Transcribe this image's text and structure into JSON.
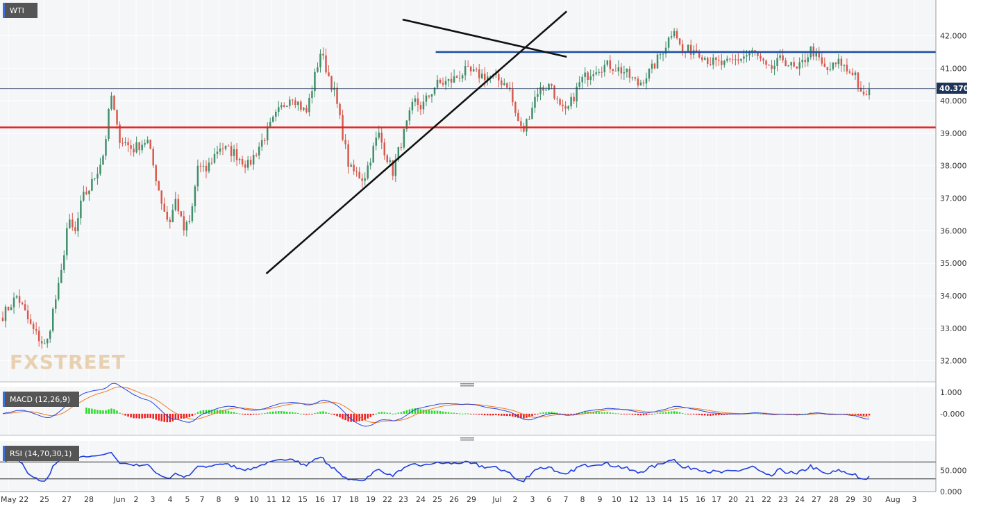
{
  "colors": {
    "up_candle": "#3f8f6a",
    "down_candle": "#d9584c",
    "support_line": "#e32222",
    "resistance_line": "#1e4fa0",
    "trendline": "#111111",
    "macd_line": "#2b44d9",
    "signal_line": "#f07a22",
    "hist_positive": "#22dd22",
    "hist_negative": "#ee1c1c",
    "rsi_line": "#1f3de0",
    "price_tag_bg": "#1d3557",
    "label_bg": "#555555"
  },
  "chart_data": [
    {
      "type": "candlestick",
      "title": "WTI",
      "x_labels": [
        "May 22",
        "25",
        "27",
        "28",
        "Jun",
        "2",
        "3",
        "4",
        "5",
        "7",
        "8",
        "9",
        "10",
        "11",
        "12",
        "15",
        "16",
        "17",
        "18",
        "19",
        "22",
        "23",
        "24",
        "25",
        "26",
        "29",
        "Jul",
        "2",
        "3",
        "6",
        "7",
        "8",
        "9",
        "10",
        "12",
        "13",
        "14",
        "15",
        "16",
        "17",
        "20",
        "21",
        "22",
        "23",
        "24",
        "27",
        "28",
        "29",
        "30",
        "Aug",
        "3"
      ],
      "y_ticks": [
        "32.000",
        "33.000",
        "34.000",
        "35.000",
        "36.000",
        "37.000",
        "38.000",
        "39.000",
        "40.000",
        "41.000",
        "42.000"
      ],
      "ylim": [
        31.35,
        43.1
      ],
      "last_price": "40.370",
      "current_price": 40.37,
      "horizontal_levels": [
        {
          "name": "support",
          "value": 39.18
        },
        {
          "name": "resistance",
          "value": 41.5
        }
      ],
      "trendlines": [
        {
          "name": "rising-support",
          "from": [
            12.7,
            34.68
          ],
          "to": [
            30.05,
            42.75
          ]
        },
        {
          "name": "falling-resistance",
          "from": [
            20.95,
            42.5
          ],
          "to": [
            30.05,
            41.35
          ]
        }
      ],
      "anchors": [
        [
          0,
          33.4
        ],
        [
          1,
          34.0
        ],
        [
          2,
          33.0
        ],
        [
          3,
          32.4
        ],
        [
          3.5,
          33.6
        ],
        [
          4,
          34.5
        ],
        [
          4.5,
          36.3
        ],
        [
          5,
          35.9
        ],
        [
          5.5,
          37.0
        ],
        [
          6,
          37.3
        ],
        [
          6.5,
          37.8
        ],
        [
          7,
          38.4
        ],
        [
          7.5,
          40.2
        ],
        [
          8,
          38.9
        ],
        [
          9,
          38.5
        ],
        [
          10,
          38.8
        ],
        [
          11,
          36.9
        ],
        [
          11.5,
          36.2
        ],
        [
          12,
          37.0
        ],
        [
          12.5,
          36.0
        ],
        [
          13,
          36.3
        ],
        [
          13.5,
          38.0
        ],
        [
          14,
          37.8
        ],
        [
          15,
          38.6
        ],
        [
          16,
          38.4
        ],
        [
          17,
          38.0
        ],
        [
          18,
          38.8
        ],
        [
          19,
          39.6
        ],
        [
          20,
          40.2
        ],
        [
          21,
          39.6
        ],
        [
          22,
          41.5
        ],
        [
          23,
          40.2
        ],
        [
          24,
          37.9
        ],
        [
          25,
          37.6
        ],
        [
          26,
          39.0
        ],
        [
          27,
          37.8
        ],
        [
          27.5,
          38.6
        ],
        [
          28,
          39.3
        ],
        [
          28.5,
          40.0
        ],
        [
          29,
          39.8
        ],
        [
          30,
          40.5
        ],
        [
          31,
          40.6
        ],
        [
          32,
          40.9
        ],
        [
          33,
          40.8
        ],
        [
          34,
          40.7
        ],
        [
          35,
          40.5
        ],
        [
          35.5,
          39.6
        ],
        [
          36,
          39.0
        ],
        [
          37,
          40.3
        ],
        [
          38,
          40.5
        ],
        [
          38.5,
          39.8
        ],
        [
          39,
          39.6
        ],
        [
          40,
          40.6
        ],
        [
          41,
          41.0
        ],
        [
          42,
          41.1
        ],
        [
          43,
          40.9
        ],
        [
          44,
          40.5
        ],
        [
          45,
          41.0
        ],
        [
          46,
          41.8
        ],
        [
          46.5,
          42.3
        ],
        [
          47,
          41.5
        ],
        [
          48,
          41.6
        ],
        [
          49,
          41.2
        ],
        [
          50,
          41.1
        ],
        [
          51,
          41.3
        ],
        [
          52,
          41.5
        ],
        [
          53,
          40.9
        ],
        [
          54,
          41.3
        ],
        [
          55,
          40.9
        ],
        [
          56,
          41.6
        ],
        [
          57,
          40.9
        ],
        [
          58,
          41.2
        ],
        [
          58.5,
          40.9
        ],
        [
          59,
          40.9
        ],
        [
          59.5,
          40.0
        ],
        [
          60,
          40.37
        ]
      ]
    },
    {
      "type": "line",
      "title": "MACD (12,26,9)",
      "y_ticks": [
        "1.000",
        "-0.000"
      ],
      "ylim": [
        -1.0,
        1.25
      ]
    },
    {
      "type": "line",
      "title": "RSI (14,70,30,1)",
      "y_ticks": [
        "50.000",
        "0.000"
      ],
      "ylim": [
        0,
        120
      ],
      "levels": [
        30,
        70
      ]
    }
  ]
}
